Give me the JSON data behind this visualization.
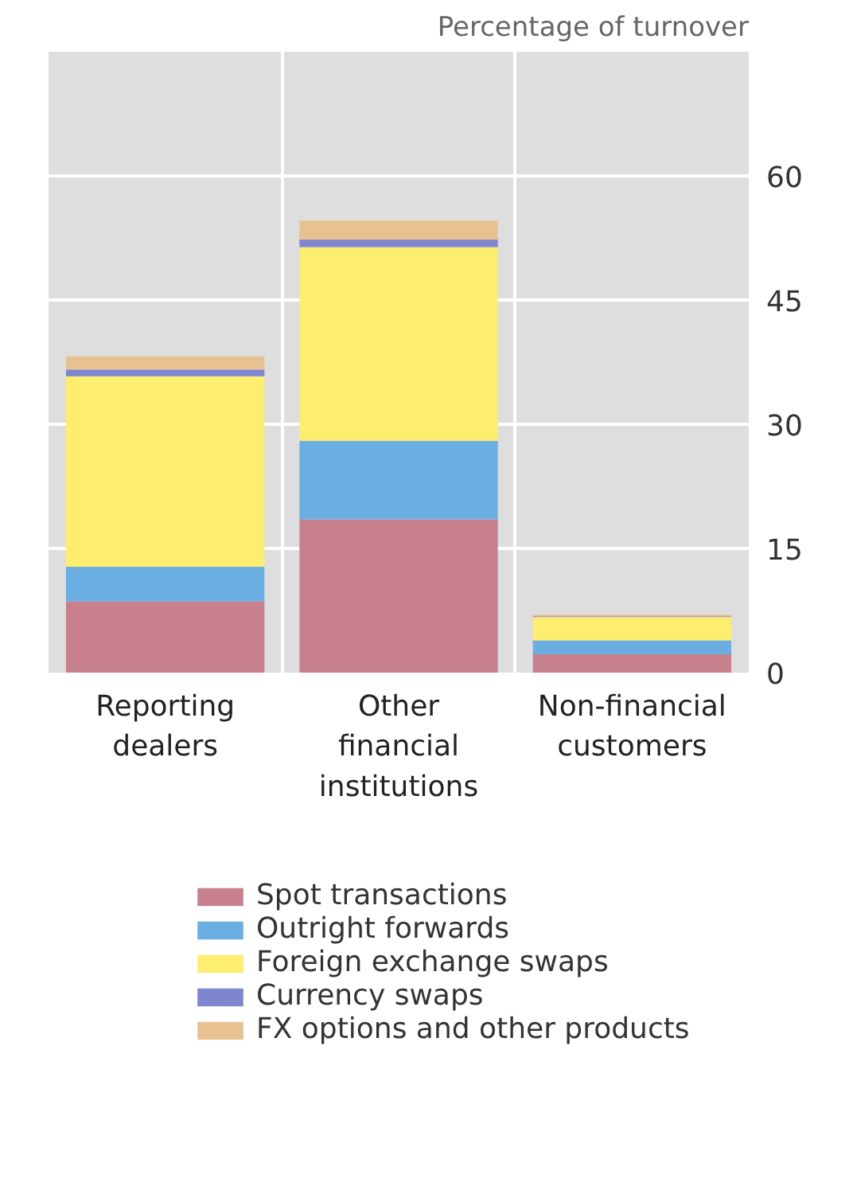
{
  "chart_data": {
    "type": "bar",
    "stacked": true,
    "ylabel": "Percentage of turnover",
    "categories": [
      "Reporting dealers",
      "Other financial institutions",
      "Non-financial customers"
    ],
    "series": [
      {
        "name": "Spot transactions",
        "color": "#c8808f",
        "values": [
          8.6,
          18.5,
          2.2
        ]
      },
      {
        "name": "Outright forwards",
        "color": "#6aaee2",
        "values": [
          4.2,
          9.5,
          1.7
        ]
      },
      {
        "name": "Foreign exchange swaps",
        "color": "#fdee70",
        "values": [
          23.0,
          23.4,
          2.8
        ]
      },
      {
        "name": "Currency swaps",
        "color": "#7f86d0",
        "values": [
          0.8,
          0.9,
          0.1
        ]
      },
      {
        "name": "FX options and other products",
        "color": "#e8c190",
        "values": [
          1.6,
          2.3,
          0.2
        ]
      }
    ],
    "ylim": [
      0,
      75
    ],
    "yticks": [
      0,
      15,
      30,
      45,
      60
    ],
    "grid": true,
    "legend": "bottom"
  }
}
